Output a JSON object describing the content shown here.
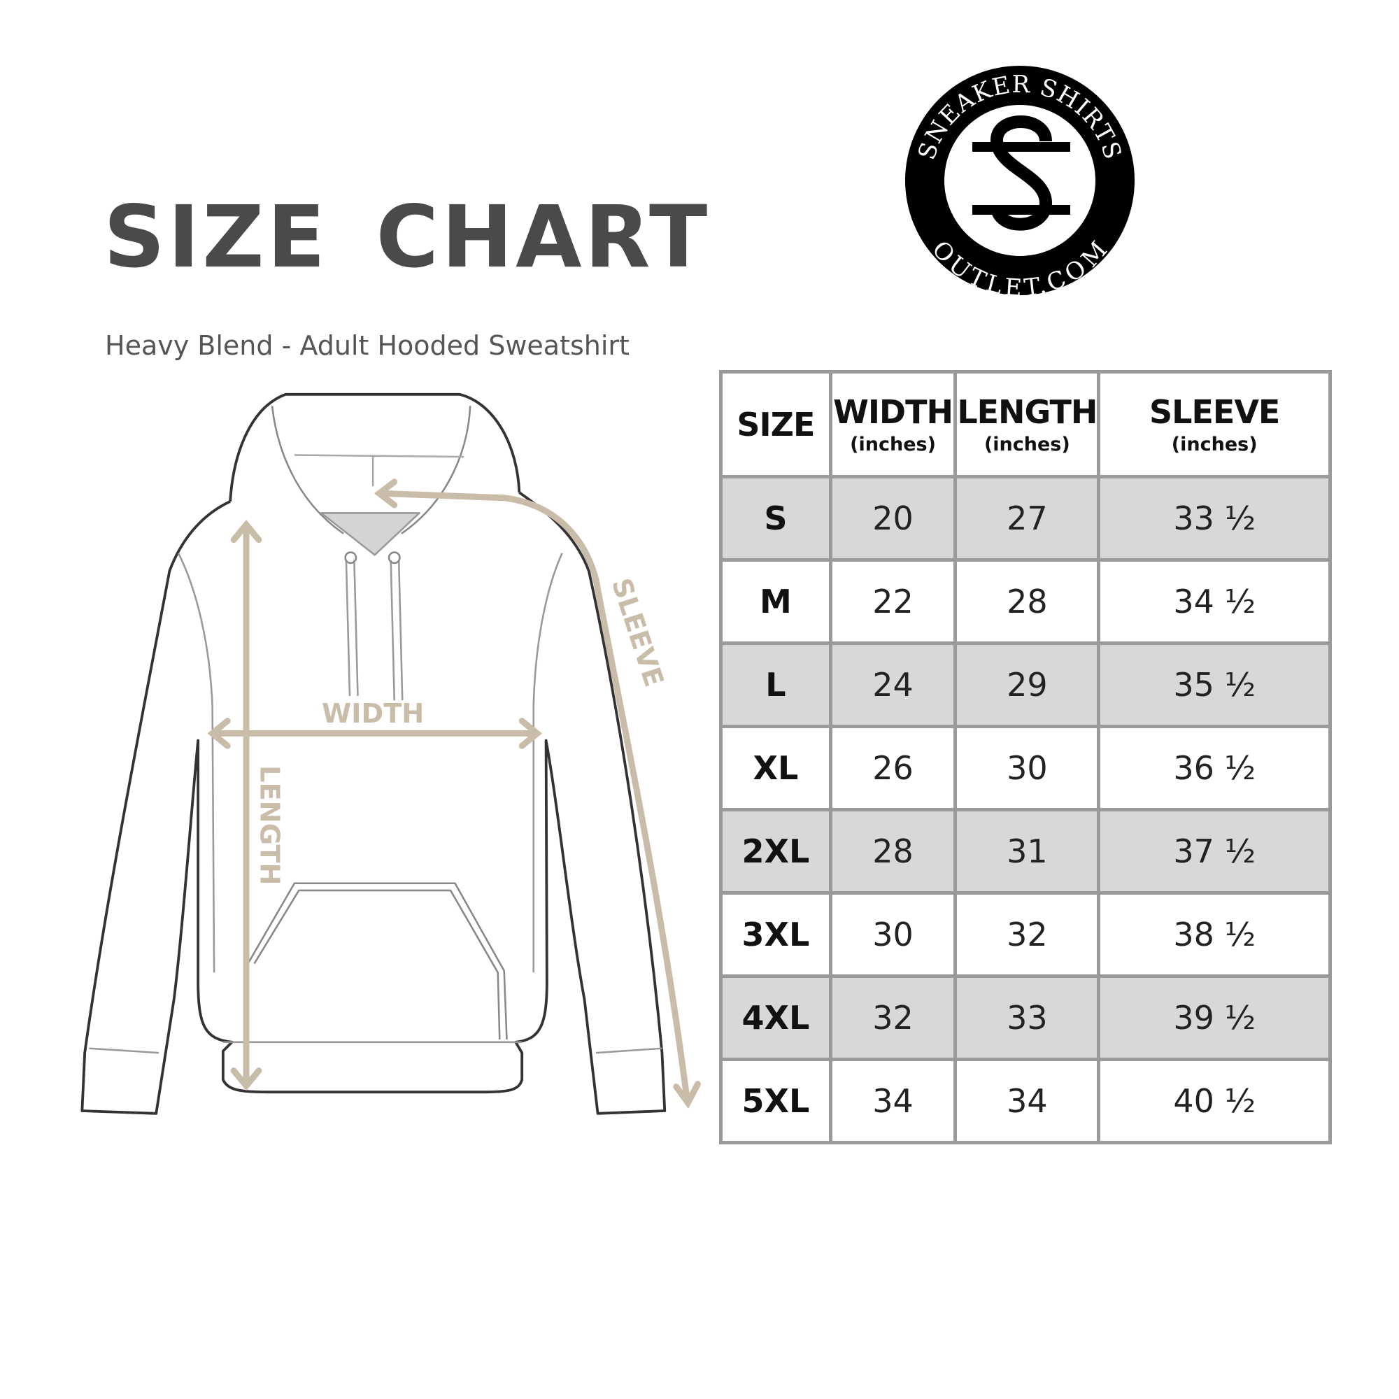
{
  "title": "SIZE CHART",
  "subtitle": "Heavy Blend - Adult Hooded Sweatshirt",
  "logo": {
    "top_text": "SNEAKER SHIRTS",
    "bottom_text": "OUTLET.COM",
    "monogram": "SS"
  },
  "diagram": {
    "width_label": "WIDTH",
    "length_label": "LENGTH",
    "sleeve_label": "SLEEVE",
    "arrow_color": "#c9bca9"
  },
  "table": {
    "headers": [
      {
        "label": "SIZE",
        "unit": ""
      },
      {
        "label": "WIDTH",
        "unit": "(inches)"
      },
      {
        "label": "LENGTH",
        "unit": "(inches)"
      },
      {
        "label": "SLEEVE",
        "unit": "(inches)"
      }
    ],
    "rows": [
      [
        "S",
        "20",
        "27",
        "33 ½"
      ],
      [
        "M",
        "22",
        "28",
        "34 ½"
      ],
      [
        "L",
        "24",
        "29",
        "35 ½"
      ],
      [
        "XL",
        "26",
        "30",
        "36 ½"
      ],
      [
        "2XL",
        "28",
        "31",
        "37 ½"
      ],
      [
        "3XL",
        "30",
        "32",
        "38 ½"
      ],
      [
        "4XL",
        "32",
        "33",
        "39 ½"
      ],
      [
        "5XL",
        "34",
        "34",
        "40 ½"
      ]
    ]
  }
}
